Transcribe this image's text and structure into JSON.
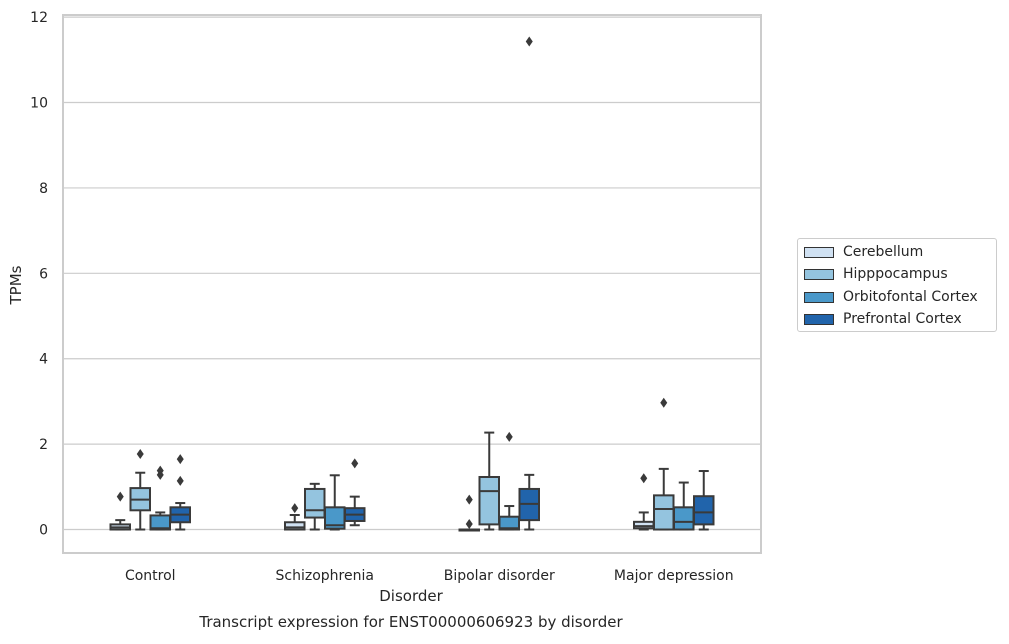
{
  "chart_data": {
    "type": "boxplot",
    "title": "Transcript expression for ENST00000606923 by disorder",
    "xlabel": "Disorder",
    "ylabel": "TPMs",
    "ylim": [
      -0.55,
      12.05
    ],
    "yticks": [
      0,
      2,
      4,
      6,
      8,
      10,
      12
    ],
    "grid": true,
    "legend_position": "right",
    "categories": [
      "Control",
      "Schizophrenia",
      "Bipolar disorder",
      "Major depression"
    ],
    "series": [
      {
        "name": "Cerebellum",
        "color": "#d0e1f2",
        "boxes": [
          {
            "whisker_low": 0,
            "q1": 0,
            "median": 0.05,
            "q3": 0.12,
            "whisker_high": 0.22,
            "outliers": [
              0.77
            ]
          },
          {
            "whisker_low": 0,
            "q1": 0,
            "median": 0.05,
            "q3": 0.17,
            "whisker_high": 0.34,
            "outliers": [
              0.5
            ]
          },
          {
            "whisker_low": 0,
            "q1": 0,
            "median": 0,
            "q3": 0,
            "whisker_high": 0,
            "outliers": [
              0.7,
              0.13
            ]
          },
          {
            "whisker_low": 0,
            "q1": 0.03,
            "median": 0.08,
            "q3": 0.18,
            "whisker_high": 0.4,
            "outliers": [
              1.2
            ]
          }
        ]
      },
      {
        "name": "Hipppocampus",
        "color": "#94c4df",
        "boxes": [
          {
            "whisker_low": 0,
            "q1": 0.45,
            "median": 0.7,
            "q3": 0.97,
            "whisker_high": 1.33,
            "outliers": [
              1.77
            ]
          },
          {
            "whisker_low": 0,
            "q1": 0.28,
            "median": 0.45,
            "q3": 0.95,
            "whisker_high": 1.07,
            "outliers": []
          },
          {
            "whisker_low": 0,
            "q1": 0.12,
            "median": 0.9,
            "q3": 1.23,
            "whisker_high": 2.27,
            "outliers": []
          },
          {
            "whisker_low": 0,
            "q1": 0,
            "median": 0.48,
            "q3": 0.8,
            "whisker_high": 1.42,
            "outliers": [
              2.97
            ]
          }
        ]
      },
      {
        "name": "Orbitofontal Cortex",
        "color": "#4a98c9",
        "boxes": [
          {
            "whisker_low": 0,
            "q1": 0,
            "median": 0.03,
            "q3": 0.33,
            "whisker_high": 0.4,
            "outliers": [
              1.38,
              1.28
            ]
          },
          {
            "whisker_low": 0,
            "q1": 0.02,
            "median": 0.1,
            "q3": 0.52,
            "whisker_high": 1.27,
            "outliers": []
          },
          {
            "whisker_low": 0,
            "q1": 0,
            "median": 0.03,
            "q3": 0.3,
            "whisker_high": 0.55,
            "outliers": [
              2.17
            ]
          },
          {
            "whisker_low": 0,
            "q1": 0,
            "median": 0.18,
            "q3": 0.52,
            "whisker_high": 1.1,
            "outliers": []
          }
        ]
      },
      {
        "name": "Prefrontal Cortex",
        "color": "#2164ab",
        "boxes": [
          {
            "whisker_low": 0,
            "q1": 0.17,
            "median": 0.35,
            "q3": 0.52,
            "whisker_high": 0.62,
            "outliers": [
              1.65,
              1.14
            ]
          },
          {
            "whisker_low": 0.1,
            "q1": 0.2,
            "median": 0.35,
            "q3": 0.5,
            "whisker_high": 0.77,
            "outliers": [
              1.55
            ]
          },
          {
            "whisker_low": 0,
            "q1": 0.22,
            "median": 0.6,
            "q3": 0.95,
            "whisker_high": 1.28,
            "outliers": [
              11.43
            ]
          },
          {
            "whisker_low": 0,
            "q1": 0.12,
            "median": 0.4,
            "q3": 0.78,
            "whisker_high": 1.37,
            "outliers": []
          }
        ]
      }
    ]
  },
  "legend": {
    "items": [
      {
        "label": "Cerebellum",
        "color": "#d0e1f2"
      },
      {
        "label": "Hipppocampus",
        "color": "#94c4df"
      },
      {
        "label": "Orbitofontal Cortex",
        "color": "#4a98c9"
      },
      {
        "label": "Prefrontal Cortex",
        "color": "#2164ab"
      }
    ]
  }
}
